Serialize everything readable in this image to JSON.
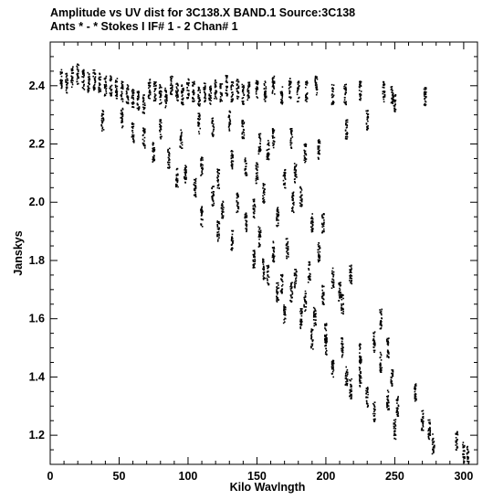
{
  "header": {
    "line1": "Amplitude vs UV dist for 3C138.X BAND.1   Source:3C138",
    "line2": "Ants * - *    Stokes I  IF# 1 - 2  Chan# 1"
  },
  "chart_data": {
    "type": "scatter",
    "xlabel": "Kilo Wavlngth",
    "ylabel": "Janskys",
    "xlim": [
      0,
      310
    ],
    "ylim": [
      1.1,
      2.55
    ],
    "grid": false,
    "x_ticks": [
      0,
      50,
      100,
      150,
      200,
      250,
      300
    ],
    "y_ticks": [
      1.2,
      1.4,
      1.6,
      1.8,
      2.0,
      2.2,
      2.4
    ],
    "x_tick_labels": [
      "0",
      "50",
      "100",
      "150",
      "200",
      "250",
      "300"
    ],
    "y_tick_labels": [
      "1.2",
      "1.4",
      "1.6",
      "1.8",
      "2.0",
      "2.2",
      "2.4"
    ],
    "marker_color": "#000000",
    "clusters": [
      {
        "x": 8,
        "y": 2.42
      },
      {
        "x": 12,
        "y": 2.41
      },
      {
        "x": 16,
        "y": 2.43
      },
      {
        "x": 20,
        "y": 2.44
      },
      {
        "x": 24,
        "y": 2.42
      },
      {
        "x": 28,
        "y": 2.41
      },
      {
        "x": 32,
        "y": 2.42
      },
      {
        "x": 36,
        "y": 2.41
      },
      {
        "x": 40,
        "y": 2.4
      },
      {
        "x": 44,
        "y": 2.4
      },
      {
        "x": 48,
        "y": 2.39
      },
      {
        "x": 52,
        "y": 2.38
      },
      {
        "x": 56,
        "y": 2.37
      },
      {
        "x": 60,
        "y": 2.36
      },
      {
        "x": 64,
        "y": 2.35
      },
      {
        "x": 68,
        "y": 2.34
      },
      {
        "x": 72,
        "y": 2.39
      },
      {
        "x": 76,
        "y": 2.38
      },
      {
        "x": 80,
        "y": 2.37
      },
      {
        "x": 84,
        "y": 2.36
      },
      {
        "x": 88,
        "y": 2.4
      },
      {
        "x": 92,
        "y": 2.38
      },
      {
        "x": 96,
        "y": 2.37
      },
      {
        "x": 100,
        "y": 2.39
      },
      {
        "x": 104,
        "y": 2.38
      },
      {
        "x": 108,
        "y": 2.36
      },
      {
        "x": 112,
        "y": 2.38
      },
      {
        "x": 116,
        "y": 2.37
      },
      {
        "x": 120,
        "y": 2.39
      },
      {
        "x": 124,
        "y": 2.38
      },
      {
        "x": 128,
        "y": 2.4
      },
      {
        "x": 132,
        "y": 2.38
      },
      {
        "x": 136,
        "y": 2.39
      },
      {
        "x": 140,
        "y": 2.37
      },
      {
        "x": 144,
        "y": 2.38
      },
      {
        "x": 150,
        "y": 2.39
      },
      {
        "x": 156,
        "y": 2.38
      },
      {
        "x": 162,
        "y": 2.4
      },
      {
        "x": 168,
        "y": 2.37
      },
      {
        "x": 174,
        "y": 2.39
      },
      {
        "x": 180,
        "y": 2.38
      },
      {
        "x": 186,
        "y": 2.38
      },
      {
        "x": 193,
        "y": 2.4
      },
      {
        "x": 205,
        "y": 2.37
      },
      {
        "x": 214,
        "y": 2.37
      },
      {
        "x": 225,
        "y": 2.38
      },
      {
        "x": 242,
        "y": 2.38
      },
      {
        "x": 248,
        "y": 2.37
      },
      {
        "x": 250,
        "y": 2.34
      },
      {
        "x": 272,
        "y": 2.36
      },
      {
        "x": 52,
        "y": 2.29
      },
      {
        "x": 60,
        "y": 2.24
      },
      {
        "x": 68,
        "y": 2.22
      },
      {
        "x": 80,
        "y": 2.25
      },
      {
        "x": 95,
        "y": 2.22
      },
      {
        "x": 108,
        "y": 2.27
      },
      {
        "x": 118,
        "y": 2.26
      },
      {
        "x": 130,
        "y": 2.28
      },
      {
        "x": 140,
        "y": 2.25
      },
      {
        "x": 152,
        "y": 2.2
      },
      {
        "x": 162,
        "y": 2.22
      },
      {
        "x": 175,
        "y": 2.22
      },
      {
        "x": 185,
        "y": 2.17
      },
      {
        "x": 195,
        "y": 2.18
      },
      {
        "x": 215,
        "y": 2.25
      },
      {
        "x": 230,
        "y": 2.28
      },
      {
        "x": 38,
        "y": 2.28
      },
      {
        "x": 75,
        "y": 2.17
      },
      {
        "x": 86,
        "y": 2.15
      },
      {
        "x": 98,
        "y": 2.1
      },
      {
        "x": 110,
        "y": 2.12
      },
      {
        "x": 122,
        "y": 2.08
      },
      {
        "x": 132,
        "y": 2.15
      },
      {
        "x": 142,
        "y": 2.12
      },
      {
        "x": 150,
        "y": 2.1
      },
      {
        "x": 158,
        "y": 2.18
      },
      {
        "x": 170,
        "y": 2.08
      },
      {
        "x": 178,
        "y": 2.1
      },
      {
        "x": 182,
        "y": 2.02
      },
      {
        "x": 92,
        "y": 2.08
      },
      {
        "x": 105,
        "y": 2.05
      },
      {
        "x": 118,
        "y": 2.02
      },
      {
        "x": 125,
        "y": 1.98
      },
      {
        "x": 136,
        "y": 2.0
      },
      {
        "x": 148,
        "y": 1.98
      },
      {
        "x": 155,
        "y": 2.03
      },
      {
        "x": 165,
        "y": 1.95
      },
      {
        "x": 176,
        "y": 2.0
      },
      {
        "x": 190,
        "y": 1.93
      },
      {
        "x": 198,
        "y": 1.93
      },
      {
        "x": 110,
        "y": 1.95
      },
      {
        "x": 122,
        "y": 1.9
      },
      {
        "x": 132,
        "y": 1.87
      },
      {
        "x": 142,
        "y": 1.93
      },
      {
        "x": 152,
        "y": 1.88
      },
      {
        "x": 162,
        "y": 1.83
      },
      {
        "x": 172,
        "y": 1.84
      },
      {
        "x": 195,
        "y": 1.83
      },
      {
        "x": 148,
        "y": 1.8
      },
      {
        "x": 158,
        "y": 1.75
      },
      {
        "x": 168,
        "y": 1.72
      },
      {
        "x": 178,
        "y": 1.74
      },
      {
        "x": 188,
        "y": 1.76
      },
      {
        "x": 205,
        "y": 1.74
      },
      {
        "x": 218,
        "y": 1.75
      },
      {
        "x": 155,
        "y": 1.77
      },
      {
        "x": 165,
        "y": 1.69
      },
      {
        "x": 175,
        "y": 1.69
      },
      {
        "x": 185,
        "y": 1.66
      },
      {
        "x": 198,
        "y": 1.68
      },
      {
        "x": 210,
        "y": 1.69
      },
      {
        "x": 170,
        "y": 1.62
      },
      {
        "x": 182,
        "y": 1.6
      },
      {
        "x": 192,
        "y": 1.61
      },
      {
        "x": 200,
        "y": 1.55
      },
      {
        "x": 212,
        "y": 1.65
      },
      {
        "x": 240,
        "y": 1.6
      },
      {
        "x": 190,
        "y": 1.53
      },
      {
        "x": 200,
        "y": 1.51
      },
      {
        "x": 212,
        "y": 1.5
      },
      {
        "x": 225,
        "y": 1.48
      },
      {
        "x": 235,
        "y": 1.52
      },
      {
        "x": 245,
        "y": 1.5
      },
      {
        "x": 205,
        "y": 1.43
      },
      {
        "x": 215,
        "y": 1.4
      },
      {
        "x": 225,
        "y": 1.4
      },
      {
        "x": 240,
        "y": 1.45
      },
      {
        "x": 248,
        "y": 1.4
      },
      {
        "x": 218,
        "y": 1.36
      },
      {
        "x": 230,
        "y": 1.33
      },
      {
        "x": 245,
        "y": 1.32
      },
      {
        "x": 252,
        "y": 1.3
      },
      {
        "x": 265,
        "y": 1.35
      },
      {
        "x": 235,
        "y": 1.28
      },
      {
        "x": 250,
        "y": 1.22
      },
      {
        "x": 270,
        "y": 1.25
      },
      {
        "x": 275,
        "y": 1.22
      },
      {
        "x": 278,
        "y": 1.17
      },
      {
        "x": 295,
        "y": 1.18
      },
      {
        "x": 300,
        "y": 1.14
      },
      {
        "x": 303,
        "y": 1.13
      }
    ]
  }
}
